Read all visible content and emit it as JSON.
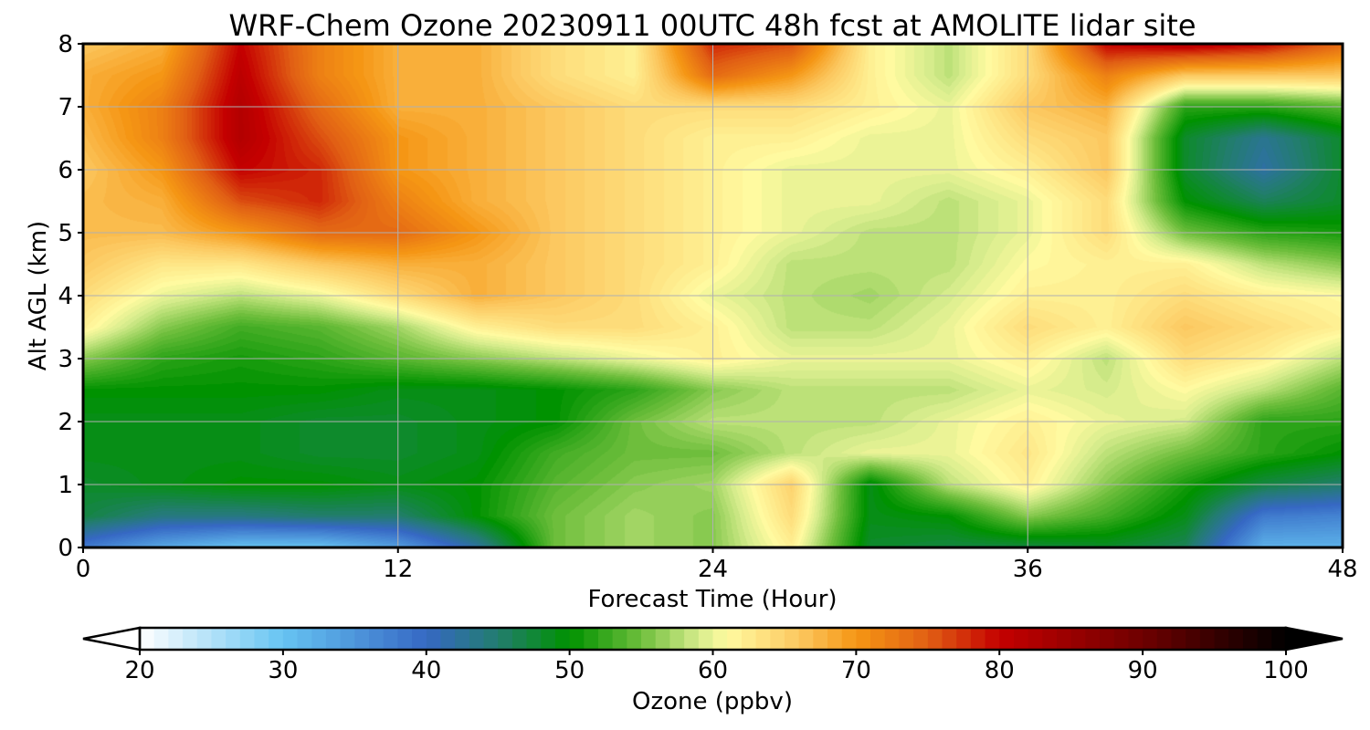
{
  "chart_data": {
    "type": "heatmap",
    "title": "WRF-Chem Ozone  20230911 00UTC 48h fcst at AMOLITE lidar site",
    "xlabel": "Forecast Time (Hour)",
    "ylabel": "Alt AGL (km)",
    "xlim": [
      0,
      48
    ],
    "ylim": [
      0,
      8
    ],
    "x_ticks": [
      "0",
      "12",
      "24",
      "36",
      "48"
    ],
    "y_ticks": [
      "0",
      "1",
      "2",
      "3",
      "4",
      "5",
      "6",
      "7",
      "8"
    ],
    "grid": true,
    "colorbar": {
      "label": "Ozone  (ppbv)",
      "range": [
        20,
        100
      ],
      "extend": "both",
      "ticks": [
        "20",
        "30",
        "40",
        "50",
        "60",
        "70",
        "80",
        "90",
        "100"
      ]
    },
    "grid_x": [
      0,
      3,
      6,
      9,
      12,
      15,
      18,
      21,
      24,
      27,
      30,
      33,
      36,
      39,
      42,
      45,
      48
    ],
    "grid_y": [
      0,
      0.5,
      1,
      1.5,
      2,
      2.5,
      3,
      3.5,
      4,
      4.5,
      5,
      5.5,
      6,
      6.5,
      7,
      7.5,
      8
    ],
    "z": [
      [
        38,
        33,
        30,
        30,
        34,
        42,
        55,
        57,
        56,
        62,
        48,
        47,
        47,
        48,
        46,
        32,
        32
      ],
      [
        47,
        44,
        44,
        45,
        45,
        50,
        55,
        57,
        56,
        64,
        49,
        50,
        56,
        53,
        49,
        38,
        37
      ],
      [
        48,
        49,
        50,
        50,
        49,
        50,
        54,
        56,
        57,
        65,
        49,
        58,
        62,
        56,
        51,
        47,
        45
      ],
      [
        49,
        49,
        49,
        48,
        48,
        49,
        53,
        55,
        55,
        58,
        60,
        60,
        63,
        58,
        55,
        52,
        50
      ],
      [
        49,
        49,
        49,
        48,
        48,
        49,
        50,
        55,
        58,
        58,
        58,
        60,
        62,
        60,
        59,
        52,
        52
      ],
      [
        50,
        50,
        50,
        50,
        49,
        49,
        50,
        52,
        56,
        58,
        58,
        58,
        60,
        59,
        61,
        58,
        54
      ],
      [
        56,
        52,
        51,
        52,
        54,
        56,
        58,
        60,
        62,
        60,
        60,
        60,
        62,
        58,
        64,
        62,
        58
      ],
      [
        62,
        56,
        53,
        54,
        57,
        62,
        64,
        64,
        62,
        58,
        58,
        60,
        64,
        62,
        66,
        64,
        62
      ],
      [
        64,
        60,
        58,
        60,
        64,
        68,
        66,
        64,
        60,
        58,
        57,
        59,
        62,
        62,
        64,
        62,
        61
      ],
      [
        66,
        63,
        63,
        66,
        68,
        68,
        66,
        64,
        62,
        58,
        58,
        58,
        61,
        62,
        62,
        58,
        56
      ],
      [
        67,
        67,
        70,
        74,
        74,
        70,
        66,
        64,
        62,
        60,
        58,
        58,
        60,
        64,
        55,
        52,
        51
      ],
      [
        67,
        68,
        76,
        78,
        72,
        68,
        66,
        64,
        62,
        60,
        60,
        58,
        60,
        64,
        50,
        46,
        48
      ],
      [
        66,
        70,
        80,
        78,
        70,
        68,
        66,
        64,
        62,
        60,
        60,
        60,
        62,
        66,
        48,
        42,
        48
      ],
      [
        67,
        72,
        82,
        76,
        70,
        68,
        66,
        64,
        62,
        62,
        60,
        60,
        64,
        66,
        48,
        43,
        48
      ],
      [
        68,
        72,
        82,
        74,
        68,
        68,
        66,
        64,
        64,
        64,
        62,
        60,
        66,
        68,
        52,
        52,
        54
      ],
      [
        68,
        70,
        81,
        72,
        68,
        68,
        64,
        62,
        74,
        70,
        62,
        58,
        64,
        72,
        66,
        66,
        66
      ],
      [
        66,
        68,
        80,
        72,
        68,
        68,
        64,
        62,
        78,
        76,
        62,
        58,
        64,
        80,
        82,
        80,
        74
      ]
    ]
  }
}
